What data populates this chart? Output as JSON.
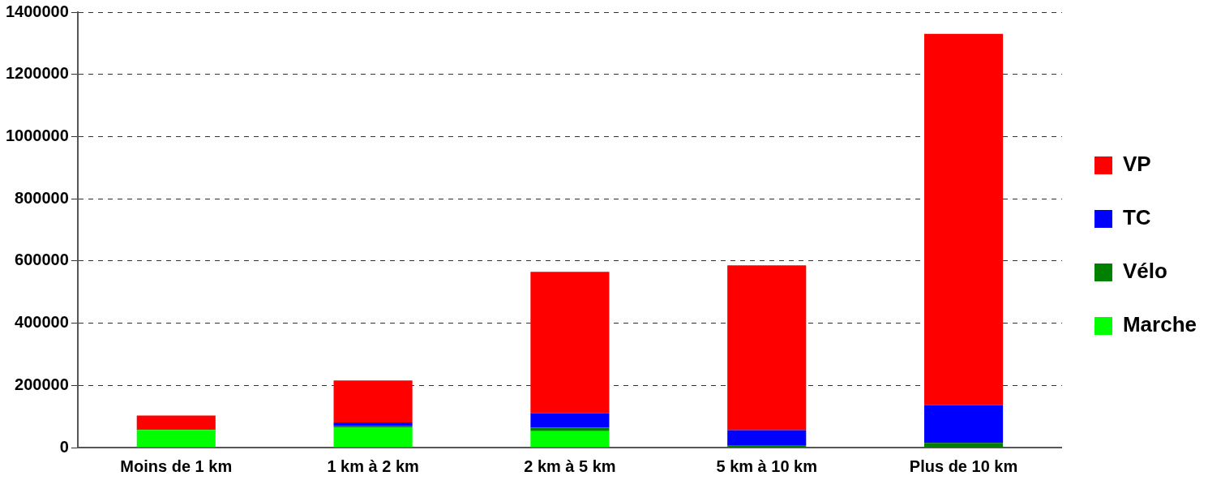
{
  "chart_data": {
    "type": "bar",
    "stacked": true,
    "categories": [
      "Moins de 1 km",
      "1 km à 2 km",
      "2 km à 5 km",
      "5 km à 10 km",
      "Plus de 10 km"
    ],
    "series": [
      {
        "name": "Marche",
        "color": "#00ff00",
        "values": [
          57000,
          64000,
          53000,
          0,
          0
        ]
      },
      {
        "name": "Vélo",
        "color": "#008000",
        "values": [
          1000,
          6000,
          11000,
          6000,
          15000
        ]
      },
      {
        "name": "TC",
        "color": "#0000ff",
        "values": [
          2000,
          11000,
          47000,
          50000,
          121000
        ]
      },
      {
        "name": "VP",
        "color": "#ff0000",
        "values": [
          43000,
          135000,
          454000,
          530000,
          1194000
        ]
      }
    ],
    "ylim": [
      0,
      1400000
    ],
    "yticks": [
      0,
      200000,
      400000,
      600000,
      800000,
      1000000,
      1200000,
      1400000
    ],
    "grid": "y",
    "legend": "right"
  }
}
